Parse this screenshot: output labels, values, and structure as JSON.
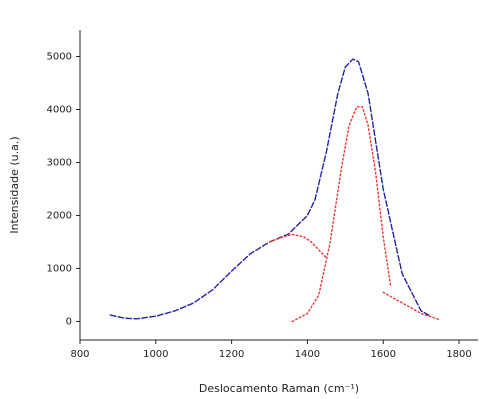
{
  "chart_data": {
    "type": "line",
    "title": "",
    "xlabel": "Deslocamento Raman (cm⁻¹)",
    "ylabel": "Intensidade (u.a.)",
    "xlim": [
      800,
      1850
    ],
    "ylim": [
      -350,
      5500
    ],
    "x_ticks": [
      800,
      1000,
      1200,
      1400,
      1600,
      1800
    ],
    "x_tick_labels": [
      "800",
      "1000",
      "1200",
      "1400",
      "1600",
      "1800"
    ],
    "y_ticks": [
      0,
      1000,
      2000,
      3000,
      4000,
      5000
    ],
    "y_tick_labels": [
      "0",
      "1000",
      "2000",
      "3000",
      "4000",
      "5000"
    ],
    "grid": false,
    "series": [
      {
        "color": "#111111",
        "style": "dashed",
        "x": [
          880,
          920,
          950,
          1000,
          1050,
          1100,
          1150,
          1200,
          1250,
          1300,
          1350,
          1400,
          1420,
          1450,
          1480,
          1500,
          1520,
          1535,
          1560,
          1600,
          1650,
          1700,
          1720
        ],
        "y": [
          120,
          60,
          50,
          100,
          200,
          350,
          600,
          950,
          1280,
          1500,
          1650,
          2000,
          2300,
          3200,
          4300,
          4800,
          4950,
          4900,
          4300,
          2500,
          900,
          200,
          120
        ]
      },
      {
        "color": "#2a2acc",
        "style": "dotted",
        "x": [
          880,
          920,
          950,
          1000,
          1050,
          1100,
          1150,
          1200,
          1250,
          1300,
          1350,
          1400,
          1420,
          1450,
          1480,
          1500,
          1520,
          1535,
          1560,
          1600,
          1650,
          1700,
          1720
        ],
        "y": [
          120,
          60,
          50,
          100,
          200,
          350,
          600,
          950,
          1280,
          1500,
          1650,
          2000,
          2300,
          3200,
          4300,
          4800,
          4950,
          4900,
          4300,
          2500,
          900,
          200,
          120
        ]
      },
      {
        "color": "#ee3333",
        "style": "dotted",
        "x": [
          1300,
          1330,
          1360,
          1390,
          1410,
          1430,
          1450
        ],
        "y": [
          1500,
          1580,
          1640,
          1600,
          1500,
          1350,
          1200
        ]
      },
      {
        "color": "#ee3333",
        "style": "dotted",
        "x": [
          1360,
          1400,
          1430,
          1460,
          1490,
          1510,
          1530,
          1545,
          1560,
          1580,
          1600,
          1620
        ],
        "y": [
          0,
          150,
          500,
          1500,
          2900,
          3700,
          4050,
          4050,
          3700,
          2800,
          1600,
          650
        ]
      },
      {
        "color": "#ee3333",
        "style": "dotted",
        "x": [
          1600,
          1650,
          1700,
          1750
        ],
        "y": [
          550,
          350,
          150,
          30
        ]
      }
    ]
  }
}
